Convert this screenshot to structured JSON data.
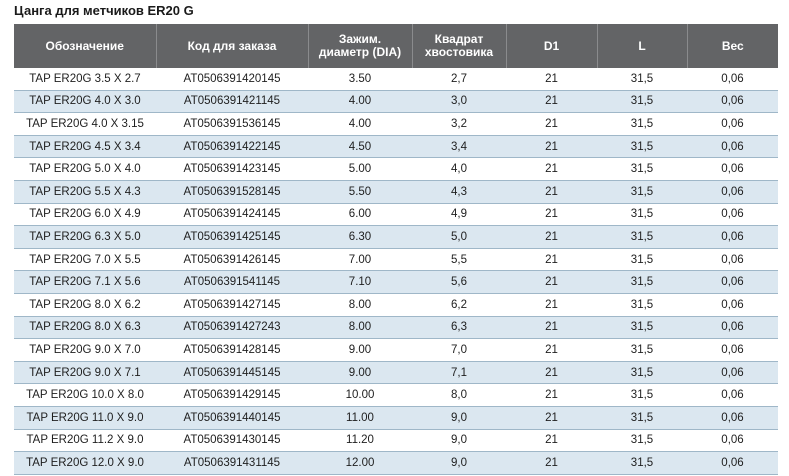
{
  "title": "Цанга для метчиков ER20 G",
  "columns": [
    [
      "Обозначение"
    ],
    [
      "Код для заказа"
    ],
    [
      "Зажим.",
      "диаметр (DIA)"
    ],
    [
      "Квадрат",
      "хвостовика"
    ],
    [
      "D1"
    ],
    [
      "L"
    ],
    [
      "Вес"
    ]
  ],
  "rows": [
    [
      "TAP ER20G 3.5 X 2.7",
      "AT0506391420145",
      "3.50",
      "2,7",
      "21",
      "31,5",
      "0,06"
    ],
    [
      "TAP ER20G 4.0 X 3.0",
      "AT0506391421145",
      "4.00",
      "3,0",
      "21",
      "31,5",
      "0,06"
    ],
    [
      "TAP ER20G 4.0 X 3.15",
      "AT0506391536145",
      "4.00",
      "3,2",
      "21",
      "31,5",
      "0,06"
    ],
    [
      "TAP ER20G 4.5 X 3.4",
      "AT0506391422145",
      "4.50",
      "3,4",
      "21",
      "31,5",
      "0,06"
    ],
    [
      "TAP ER20G 5.0 X 4.0",
      "AT0506391423145",
      "5.00",
      "4,0",
      "21",
      "31,5",
      "0,06"
    ],
    [
      "TAP ER20G 5.5 X 4.3",
      "AT0506391528145",
      "5.50",
      "4,3",
      "21",
      "31,5",
      "0,06"
    ],
    [
      "TAP ER20G 6.0 X 4.9",
      "AT0506391424145",
      "6.00",
      "4,9",
      "21",
      "31,5",
      "0,06"
    ],
    [
      "TAP ER20G 6.3 X 5.0",
      "AT0506391425145",
      "6.30",
      "5,0",
      "21",
      "31,5",
      "0,06"
    ],
    [
      "TAP ER20G 7.0 X 5.5",
      "AT0506391426145",
      "7.00",
      "5,5",
      "21",
      "31,5",
      "0,06"
    ],
    [
      "TAP ER20G 7.1 X 5.6",
      "AT0506391541145",
      "7.10",
      "5,6",
      "21",
      "31,5",
      "0,06"
    ],
    [
      "TAP ER20G 8.0 X 6.2",
      "AT0506391427145",
      "8.00",
      "6,2",
      "21",
      "31,5",
      "0,06"
    ],
    [
      "TAP ER20G 8.0 X 6.3",
      "AT0506391427243",
      "8.00",
      "6,3",
      "21",
      "31,5",
      "0,06"
    ],
    [
      "TAP ER20G 9.0 X 7.0",
      "AT0506391428145",
      "9.00",
      "7,0",
      "21",
      "31,5",
      "0,06"
    ],
    [
      "TAP ER20G 9.0 X 7.1",
      "AT0506391445145",
      "9.00",
      "7,1",
      "21",
      "31,5",
      "0,06"
    ],
    [
      "TAP ER20G 10.0 X 8.0",
      "AT0506391429145",
      "10.00",
      "8,0",
      "21",
      "31,5",
      "0,06"
    ],
    [
      "TAP ER20G 11.0 X 9.0",
      "AT0506391440145",
      "11.00",
      "9,0",
      "21",
      "31,5",
      "0,06"
    ],
    [
      "TAP ER20G 11.2 X 9.0",
      "AT0506391430145",
      "11.20",
      "9,0",
      "21",
      "31,5",
      "0,06"
    ],
    [
      "TAP ER20G 12.0 X 9.0",
      "AT0506391431145",
      "12.00",
      "9,0",
      "21",
      "31,5",
      "0,06"
    ]
  ],
  "colors": {
    "header_bg": "#636466",
    "stripe_bg": "#dbe7f0",
    "row_border": "#9fb7c8"
  }
}
